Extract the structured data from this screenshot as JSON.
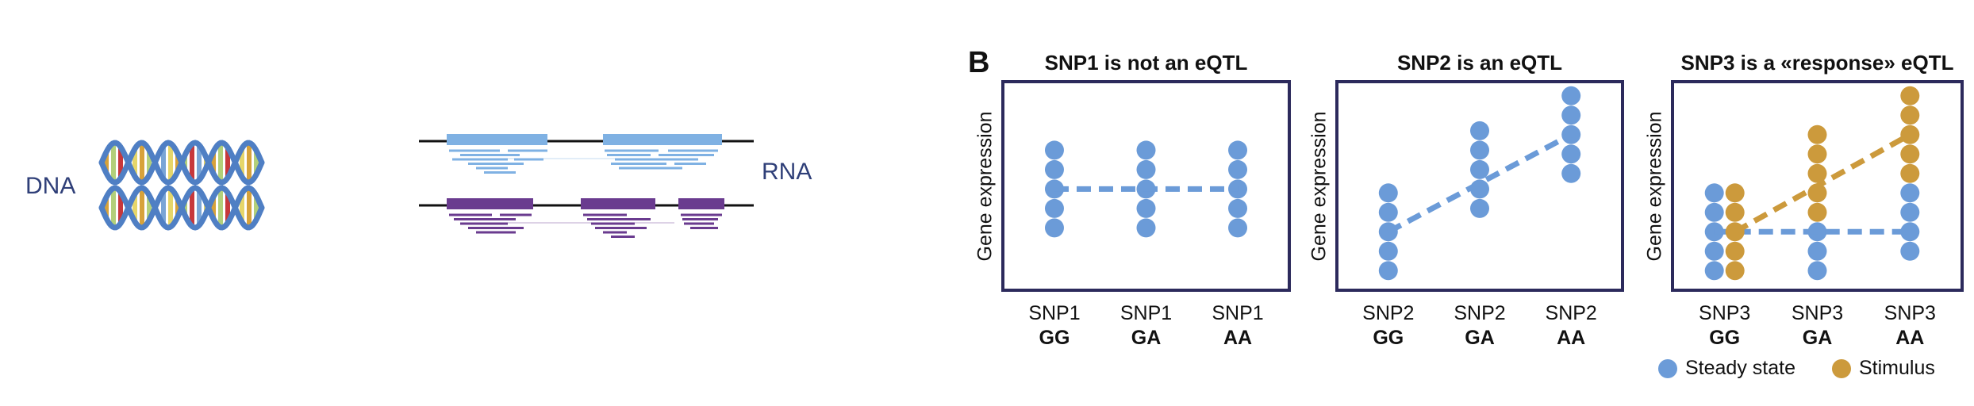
{
  "left_figure": {
    "dna_label": "DNA",
    "rna_label": "RNA",
    "colors": {
      "helix_strand": "#4f7fc4",
      "rung_colors": [
        "#d7a23a",
        "#b3d07a",
        "#c7383b",
        "#7aa5d6",
        "#e6d66a"
      ],
      "rna_top": "#7fb1e3",
      "rna_bottom": "#6a3b8f",
      "genome_line": "#111111"
    }
  },
  "panel_label": "B",
  "legend": {
    "steady_label": "Steady state",
    "stimulus_label": "Stimulus",
    "steady_color": "#6b9bd8",
    "stimulus_color": "#cc9a3c"
  },
  "chart_data": [
    {
      "type": "scatter",
      "title": "SNP1 is not an eQTL",
      "ylabel": "Gene expression",
      "categories": [
        {
          "snp": "SNP1",
          "genotype": "GG"
        },
        {
          "snp": "SNP1",
          "genotype": "GA"
        },
        {
          "snp": "SNP1",
          "genotype": "AA"
        }
      ],
      "ylim": [
        0,
        10
      ],
      "series": [
        {
          "key": "steady",
          "color": "#6b9bd8",
          "points": [
            [
              0,
              [
                2.8,
                3.8,
                4.8,
                5.8,
                6.8
              ]
            ],
            [
              1,
              [
                2.8,
                3.8,
                4.8,
                5.8,
                6.8
              ]
            ],
            [
              2,
              [
                2.8,
                3.8,
                4.8,
                5.8,
                6.8
              ]
            ]
          ],
          "trend": [
            [
              0,
              4.8
            ],
            [
              2,
              4.8
            ]
          ]
        }
      ]
    },
    {
      "type": "scatter",
      "title": "SNP2 is an eQTL",
      "ylabel": "Gene expression",
      "categories": [
        {
          "snp": "SNP2",
          "genotype": "GG"
        },
        {
          "snp": "SNP2",
          "genotype": "GA"
        },
        {
          "snp": "SNP2",
          "genotype": "AA"
        }
      ],
      "ylim": [
        0,
        10
      ],
      "series": [
        {
          "key": "steady",
          "color": "#6b9bd8",
          "points": [
            [
              0,
              [
                0.6,
                1.6,
                2.6,
                3.6,
                4.6
              ]
            ],
            [
              1,
              [
                3.8,
                4.8,
                5.8,
                6.8,
                7.8
              ]
            ],
            [
              2,
              [
                5.6,
                6.6,
                7.6,
                8.6,
                9.6
              ]
            ]
          ],
          "trend": [
            [
              0,
              2.6
            ],
            [
              2,
              7.6
            ]
          ]
        }
      ]
    },
    {
      "type": "scatter",
      "title": "SNP3 is a «response» eQTL",
      "ylabel": "Gene expression",
      "categories": [
        {
          "snp": "SNP3",
          "genotype": "GG"
        },
        {
          "snp": "SNP3",
          "genotype": "GA"
        },
        {
          "snp": "SNP3",
          "genotype": "AA"
        }
      ],
      "ylim": [
        0,
        10
      ],
      "series": [
        {
          "key": "steady",
          "color": "#6b9bd8",
          "points": [
            [
              0,
              [
                0.6,
                1.6,
                2.6,
                3.6,
                4.6
              ]
            ],
            [
              1,
              [
                0.6,
                1.6,
                2.6
              ]
            ],
            [
              2,
              [
                1.6,
                2.6,
                3.6,
                4.6
              ]
            ]
          ],
          "trend": [
            [
              0,
              2.6
            ],
            [
              2,
              2.6
            ]
          ]
        },
        {
          "key": "stimulus",
          "color": "#cc9a3c",
          "points": [
            [
              0,
              [
                0.6,
                1.6,
                2.6,
                3.6,
                4.6
              ]
            ],
            [
              1,
              [
                3.6,
                4.6,
                5.6,
                6.6,
                7.6
              ]
            ],
            [
              2,
              [
                5.6,
                6.6,
                7.6,
                8.6,
                9.6
              ]
            ]
          ],
          "trend": [
            [
              0,
              2.6
            ],
            [
              2,
              7.6
            ]
          ]
        }
      ]
    }
  ]
}
